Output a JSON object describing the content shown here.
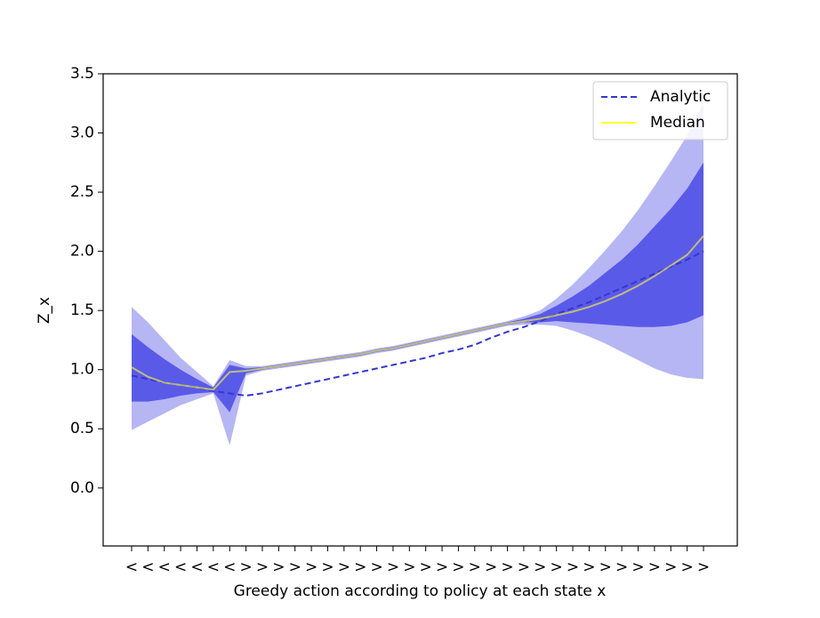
{
  "chart_data": {
    "type": "line",
    "xlabel": "Greedy action according to policy at each state x",
    "ylabel": "Z_x",
    "categories": [
      "<",
      "<",
      "<",
      "<",
      "<",
      "<",
      "<",
      ">",
      ">",
      ">",
      ">",
      ">",
      ">",
      ">",
      ">",
      ">",
      ">",
      ">",
      ">",
      ">",
      ">",
      ">",
      ">",
      ">",
      ">",
      ">",
      ">",
      ">",
      ">",
      ">",
      ">",
      ">",
      ">",
      ">",
      ">",
      ">"
    ],
    "ylim": [
      -0.49,
      3.5
    ],
    "yticks": [
      {
        "value": 0,
        "label": "0.0"
      },
      0.5,
      {
        "value": 1,
        "label": "1.0"
      },
      1.5,
      {
        "value": 2,
        "label": "2.0"
      },
      2.5,
      {
        "value": 3,
        "label": "3.0"
      },
      3.5
    ],
    "legend": "upper right",
    "bands": [
      {
        "color": "#a9a9f2",
        "upper": [
          1.53,
          1.4,
          1.25,
          1.1,
          0.98,
          0.86,
          1.08,
          1.03,
          1.03,
          1.05,
          1.07,
          1.09,
          1.11,
          1.13,
          1.15,
          1.18,
          1.2,
          1.23,
          1.26,
          1.29,
          1.32,
          1.35,
          1.38,
          1.41,
          1.45,
          1.5,
          1.6,
          1.72,
          1.86,
          2.01,
          2.17,
          2.35,
          2.55,
          2.76,
          2.98,
          3.25
        ],
        "lower": [
          0.49,
          0.56,
          0.63,
          0.7,
          0.75,
          0.8,
          0.36,
          0.95,
          0.99,
          1.01,
          1.03,
          1.05,
          1.07,
          1.09,
          1.11,
          1.14,
          1.16,
          1.19,
          1.22,
          1.25,
          1.28,
          1.31,
          1.34,
          1.37,
          1.38,
          1.38,
          1.37,
          1.33,
          1.28,
          1.22,
          1.15,
          1.08,
          1.01,
          0.96,
          0.93,
          0.92
        ]
      },
      {
        "color": "#4a4ae6",
        "upper": [
          1.3,
          1.19,
          1.09,
          1.0,
          0.92,
          0.85,
          1.04,
          1.01,
          1.02,
          1.04,
          1.06,
          1.08,
          1.1,
          1.12,
          1.14,
          1.17,
          1.19,
          1.22,
          1.25,
          1.28,
          1.31,
          1.34,
          1.37,
          1.4,
          1.43,
          1.47,
          1.54,
          1.62,
          1.71,
          1.82,
          1.93,
          2.06,
          2.21,
          2.36,
          2.53,
          2.75
        ],
        "lower": [
          0.73,
          0.73,
          0.75,
          0.78,
          0.8,
          0.81,
          0.64,
          0.97,
          1.0,
          1.02,
          1.04,
          1.06,
          1.08,
          1.1,
          1.12,
          1.15,
          1.17,
          1.2,
          1.23,
          1.26,
          1.29,
          1.32,
          1.35,
          1.38,
          1.4,
          1.4,
          1.41,
          1.4,
          1.39,
          1.38,
          1.37,
          1.36,
          1.36,
          1.37,
          1.4,
          1.46
        ]
      }
    ],
    "series": [
      {
        "name": "Analytic",
        "color": "#3535d8",
        "dash": true,
        "values": [
          0.95,
          0.92,
          0.89,
          0.87,
          0.85,
          0.82,
          0.8,
          0.78,
          0.8,
          0.83,
          0.86,
          0.89,
          0.92,
          0.95,
          0.98,
          1.01,
          1.04,
          1.07,
          1.1,
          1.14,
          1.17,
          1.21,
          1.27,
          1.32,
          1.36,
          1.41,
          1.47,
          1.52,
          1.57,
          1.63,
          1.69,
          1.75,
          1.81,
          1.87,
          1.93,
          2.0
        ]
      },
      {
        "name": "Median",
        "color": "#ffff33",
        "dash": false,
        "values": [
          1.02,
          0.94,
          0.89,
          0.87,
          0.85,
          0.83,
          0.98,
          0.99,
          1.01,
          1.03,
          1.05,
          1.07,
          1.09,
          1.11,
          1.13,
          1.16,
          1.18,
          1.21,
          1.24,
          1.27,
          1.3,
          1.33,
          1.36,
          1.39,
          1.41,
          1.43,
          1.46,
          1.49,
          1.53,
          1.58,
          1.64,
          1.71,
          1.79,
          1.88,
          1.97,
          2.13
        ]
      }
    ]
  }
}
